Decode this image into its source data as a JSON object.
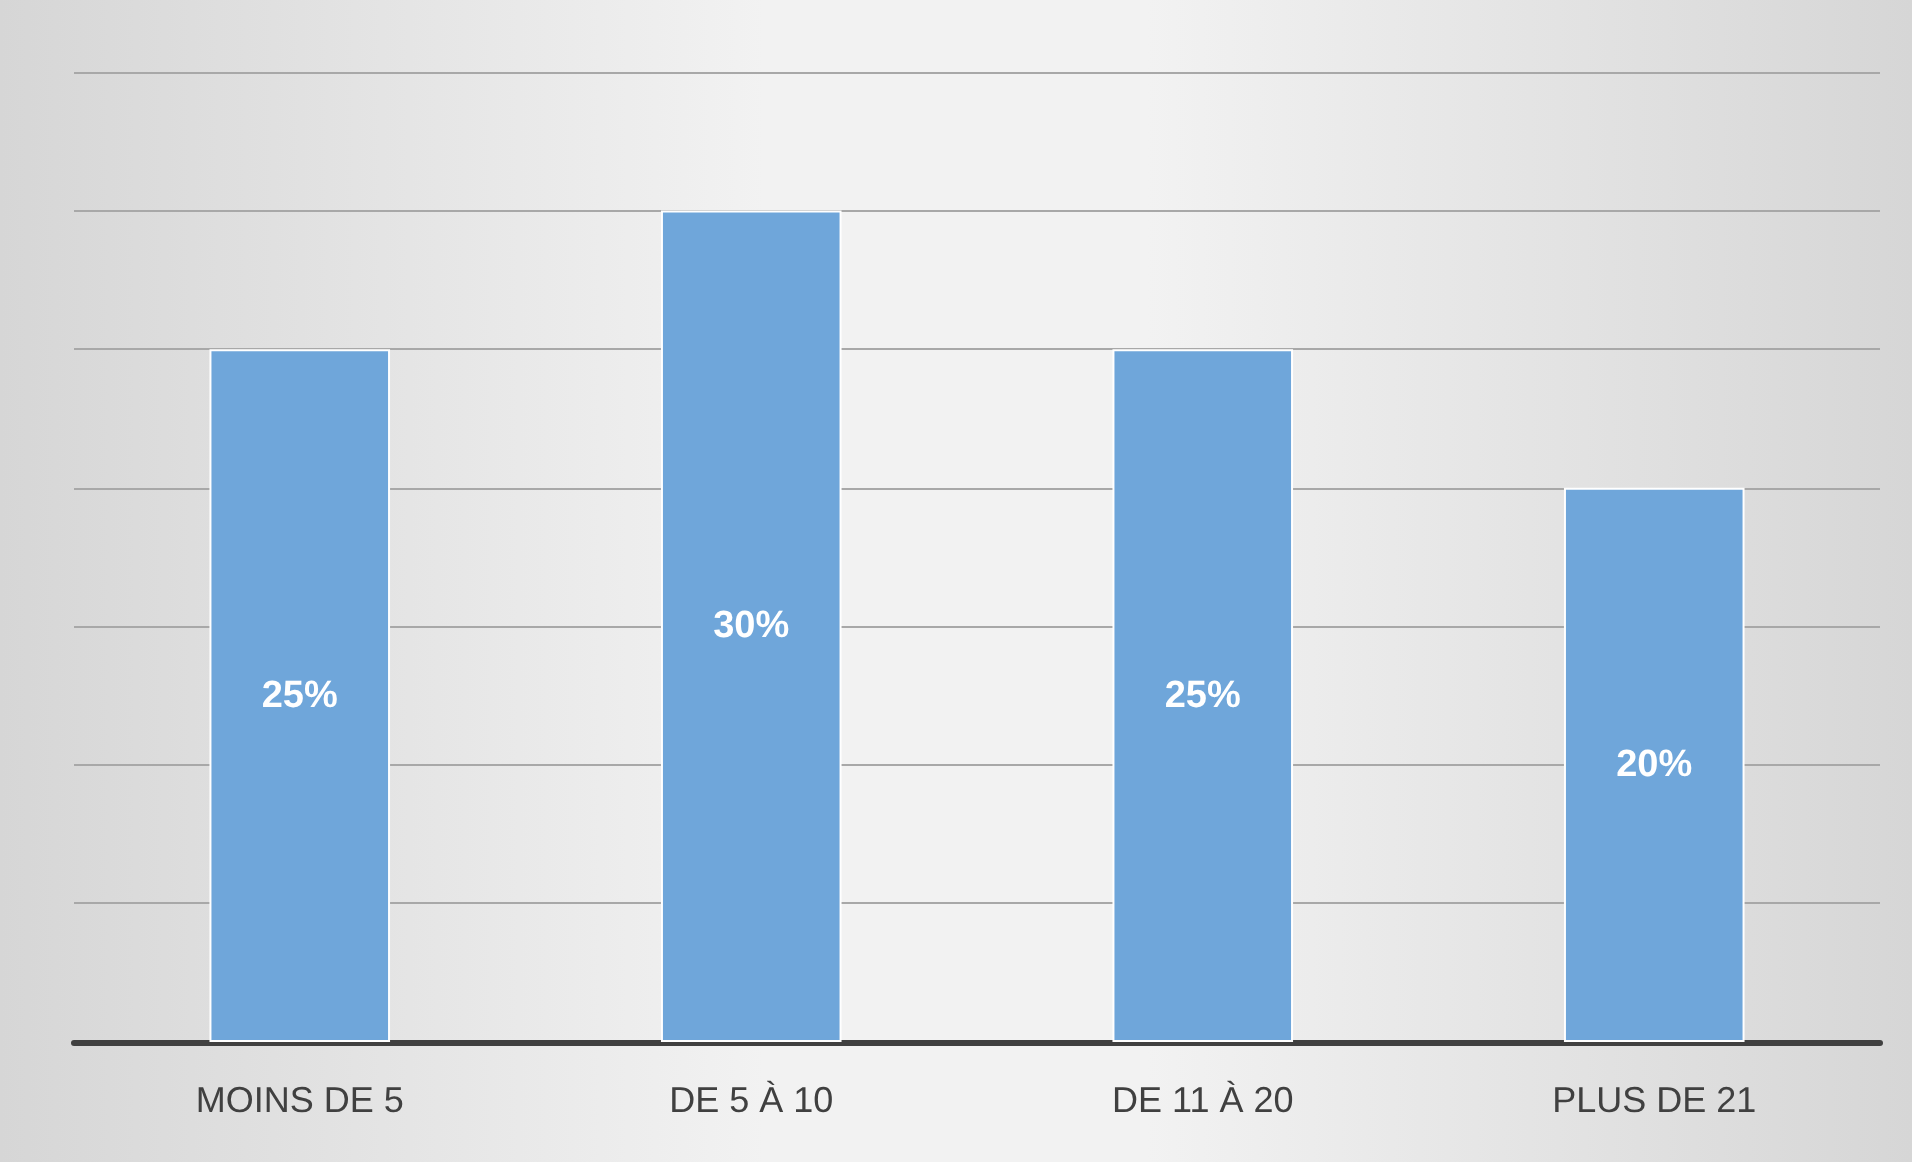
{
  "chart_data": {
    "type": "bar",
    "categories": [
      "MOINS DE 5",
      "DE 5 À 10",
      "DE 11 À 20",
      "PLUS DE 21"
    ],
    "values": [
      25,
      30,
      25,
      20
    ],
    "color": "#6fa6da",
    "value_labels": [
      "25%",
      "30%",
      "25%",
      "20%"
    ],
    "grid": "y",
    "tick_labels": "x"
  }
}
